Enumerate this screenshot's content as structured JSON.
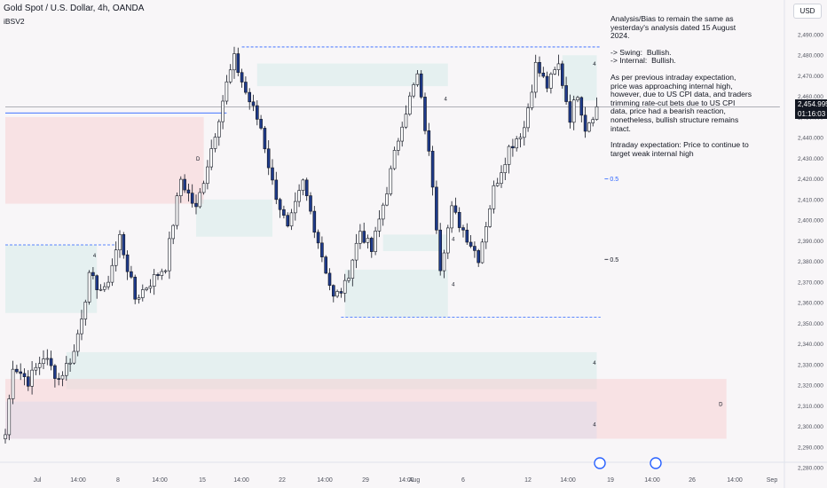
{
  "header": {
    "symbol_line": "Gold Spot / U.S. Dollar, 4h, OANDA",
    "indicator": "iBSV2"
  },
  "currency_button": "USD",
  "last_price": {
    "price": "2,454.995",
    "countdown": "01:16:03"
  },
  "analysis_note": [
    "Analysis/Bias to remain the same as yesterday's analysis dated 15 August 2024.",
    "-> Swing:  Bullish.\n-> Internal:  Bullish.",
    "As per previous intraday expectation, price was approaching internal high, however, due to US CPI data, and traders trimming rate-cut bets due to US CPI data, price had a bearish reaction, nonetheless, bullish structure remains intact.",
    "Intraday expectation: Price to continue to target weak internal high"
  ],
  "chart_data": {
    "type": "candlestick",
    "title": "Gold Spot / U.S. Dollar, 4h, OANDA",
    "ylim": [
      2280,
      2500
    ],
    "y_ticks": [
      "2,490.000",
      "2,480.000",
      "2,470.000",
      "2,460.000",
      "2,450.000",
      "2,440.000",
      "2,430.000",
      "2,420.000",
      "2,410.000",
      "2,400.000",
      "2,390.000",
      "2,380.000",
      "2,370.000",
      "2,360.000",
      "2,350.000",
      "2,340.000",
      "2,330.000",
      "2,320.000",
      "2,310.000",
      "2,300.000",
      "2,290.000",
      "2,280.000"
    ],
    "x_ticks": [
      "Jul",
      "14:00",
      "8",
      "14:00",
      "15",
      "14:00",
      "22",
      "14:00",
      "29",
      "14:00",
      "Aug",
      "6",
      "12",
      "14:00",
      "19",
      "14:00",
      "26",
      "14:00",
      "Sep"
    ],
    "anchors": [
      {
        "bar": 0,
        "price": 2296
      },
      {
        "bar": 2,
        "price": 2330
      },
      {
        "bar": 6,
        "price": 2322
      },
      {
        "bar": 10,
        "price": 2334
      },
      {
        "bar": 14,
        "price": 2323
      },
      {
        "bar": 18,
        "price": 2336
      },
      {
        "bar": 22,
        "price": 2372
      },
      {
        "bar": 26,
        "price": 2365
      },
      {
        "bar": 30,
        "price": 2392
      },
      {
        "bar": 34,
        "price": 2362
      },
      {
        "bar": 38,
        "price": 2370
      },
      {
        "bar": 42,
        "price": 2378
      },
      {
        "bar": 46,
        "price": 2420
      },
      {
        "bar": 50,
        "price": 2405
      },
      {
        "bar": 54,
        "price": 2435
      },
      {
        "bar": 58,
        "price": 2466
      },
      {
        "bar": 60,
        "price": 2478
      },
      {
        "bar": 63,
        "price": 2462
      },
      {
        "bar": 67,
        "price": 2445
      },
      {
        "bar": 70,
        "price": 2418
      },
      {
        "bar": 74,
        "price": 2395
      },
      {
        "bar": 78,
        "price": 2418
      },
      {
        "bar": 82,
        "price": 2390
      },
      {
        "bar": 86,
        "price": 2362
      },
      {
        "bar": 89,
        "price": 2368
      },
      {
        "bar": 93,
        "price": 2395
      },
      {
        "bar": 96,
        "price": 2385
      },
      {
        "bar": 100,
        "price": 2415
      },
      {
        "bar": 104,
        "price": 2448
      },
      {
        "bar": 108,
        "price": 2470
      },
      {
        "bar": 110,
        "price": 2445
      },
      {
        "bar": 112,
        "price": 2418
      },
      {
        "bar": 114,
        "price": 2378
      },
      {
        "bar": 117,
        "price": 2405
      },
      {
        "bar": 121,
        "price": 2392
      },
      {
        "bar": 124,
        "price": 2382
      },
      {
        "bar": 128,
        "price": 2415
      },
      {
        "bar": 132,
        "price": 2435
      },
      {
        "bar": 136,
        "price": 2445
      },
      {
        "bar": 139,
        "price": 2475
      },
      {
        "bar": 142,
        "price": 2465
      },
      {
        "bar": 145,
        "price": 2475
      },
      {
        "bar": 148,
        "price": 2450
      },
      {
        "bar": 150,
        "price": 2462
      },
      {
        "bar": 152,
        "price": 2445
      },
      {
        "bar": 155,
        "price": 2455
      }
    ],
    "zones": [
      {
        "color": "#f8c9cc",
        "y": [
          2408,
          2450
        ],
        "from": 0,
        "to": 52
      },
      {
        "color": "#cfe8e6",
        "y": [
          2355,
          2388
        ],
        "from": 0,
        "to": 24
      },
      {
        "color": "#cfe8e6",
        "y": [
          2392,
          2410
        ],
        "from": 50,
        "to": 70
      },
      {
        "color": "#cfe8e6",
        "y": [
          2465,
          2476
        ],
        "from": 66,
        "to": 116
      },
      {
        "color": "#cfe8e6",
        "y": [
          2385,
          2393
        ],
        "from": 99,
        "to": 116
      },
      {
        "color": "#cfe8e6",
        "y": [
          2353,
          2376
        ],
        "from": 89,
        "to": 116
      },
      {
        "color": "#cfe8e6",
        "y": [
          2458,
          2480
        ],
        "from": 146,
        "to": 155
      },
      {
        "color": "#cfe8e6",
        "y": [
          2318,
          2336
        ],
        "from": 16,
        "to": 155
      },
      {
        "color": "#f8c9cc",
        "y": [
          2294,
          2323
        ],
        "from": 0,
        "to": 189
      },
      {
        "color": "#d9d9ea",
        "y": [
          2294,
          2312
        ],
        "from": 0,
        "to": 155
      }
    ],
    "levels": [
      {
        "price": 2484,
        "from": 62,
        "to": 156,
        "style": "dashed"
      },
      {
        "price": 2388,
        "from": 0,
        "to": 29,
        "style": "dashed"
      },
      {
        "price": 2353,
        "from": 88,
        "to": 156,
        "style": "dashed"
      },
      {
        "price": 2452,
        "from": 0,
        "to": 58,
        "style": "solid"
      },
      {
        "price": 2454.995,
        "from": 0,
        "to": 203,
        "style": "solid"
      }
    ],
    "fib_labels": [
      {
        "text": "0.5",
        "price": 2420
      },
      {
        "text": "0.5",
        "price": 2381
      }
    ],
    "markers": [
      {
        "text": "4",
        "bar": 23,
        "price": 2382
      },
      {
        "text": "D",
        "bar": 50,
        "price": 2429
      },
      {
        "text": "4",
        "bar": 115,
        "price": 2458
      },
      {
        "text": "4",
        "bar": 117,
        "price": 2390
      },
      {
        "text": "4",
        "bar": 117,
        "price": 2368
      },
      {
        "text": "4",
        "bar": 154,
        "price": 2475
      },
      {
        "text": "4",
        "bar": 154,
        "price": 2330
      },
      {
        "text": "4",
        "bar": 154,
        "price": 2300
      },
      {
        "text": "D",
        "bar": 187,
        "price": 2310
      }
    ]
  }
}
